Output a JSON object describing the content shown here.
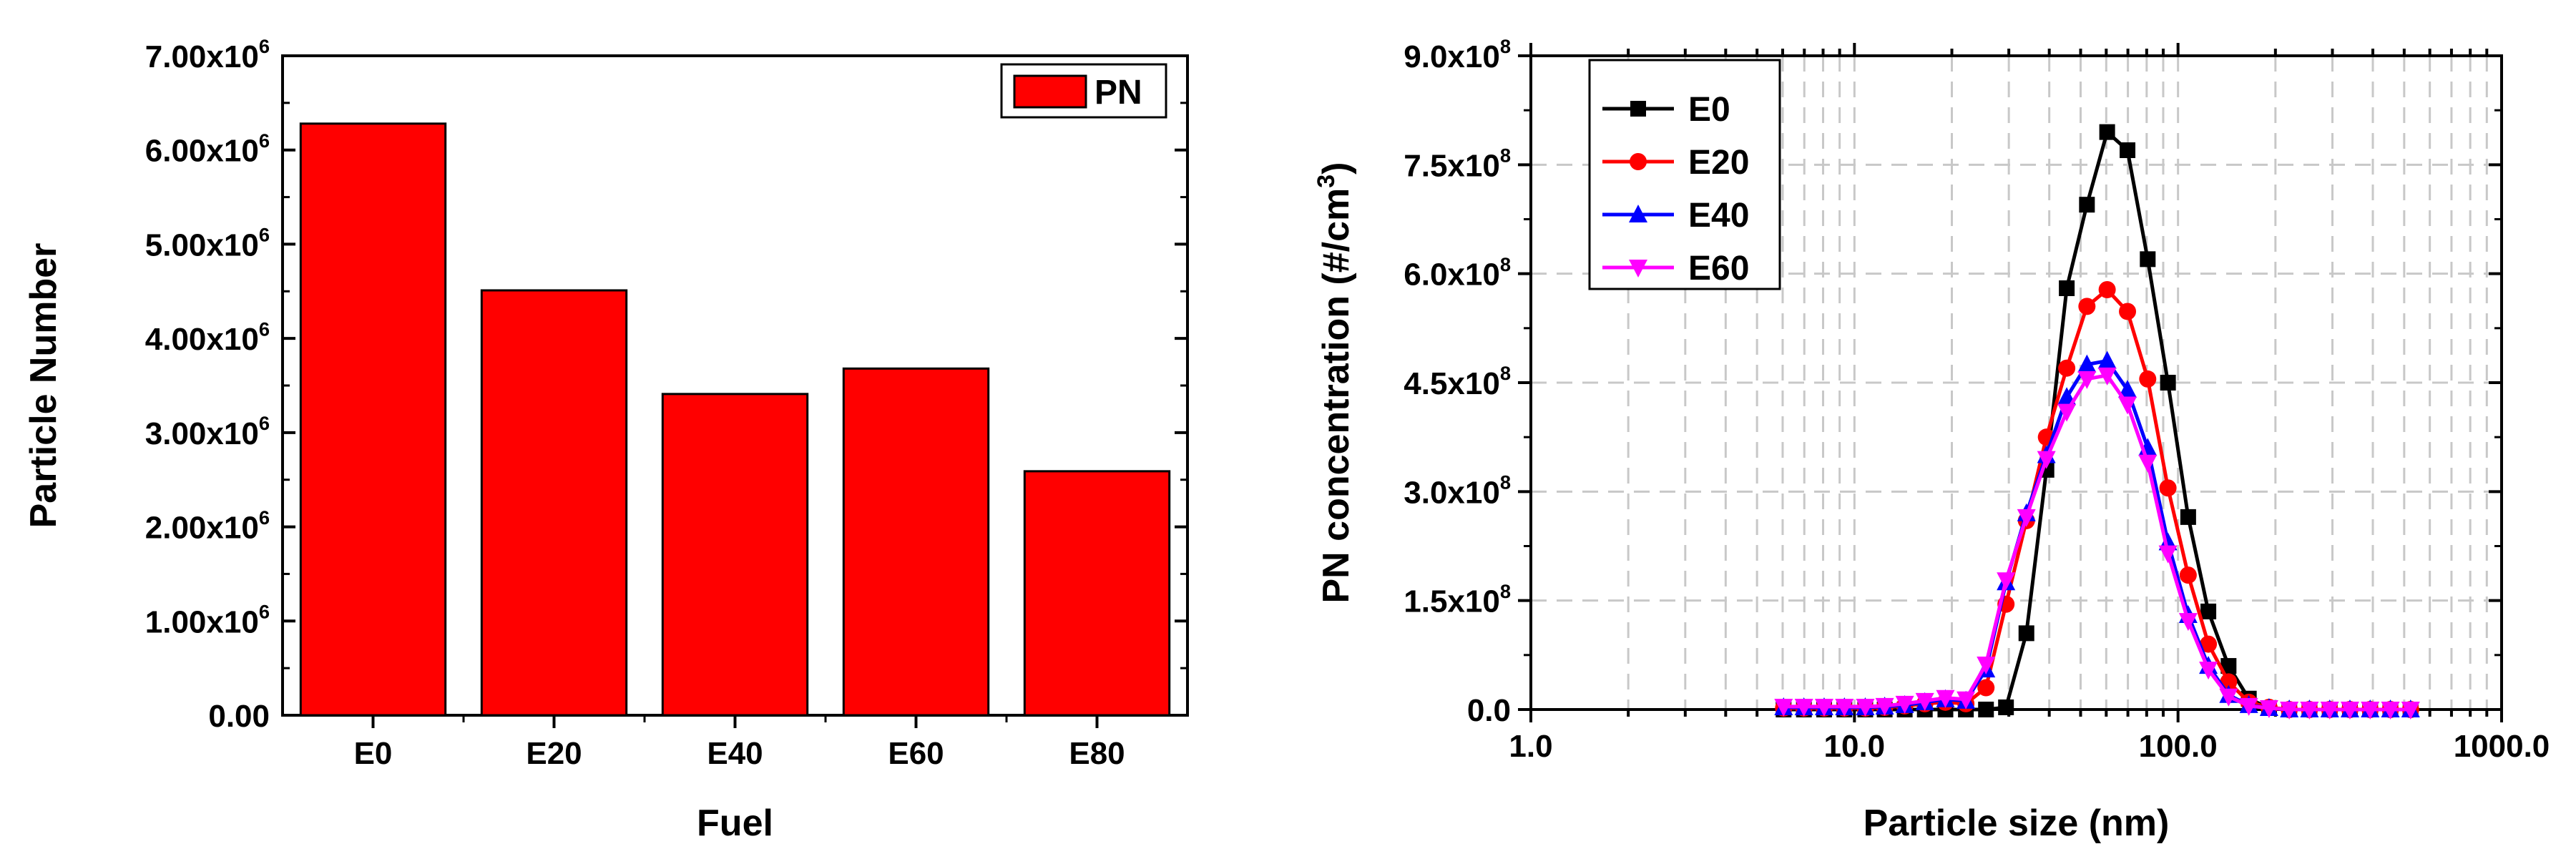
{
  "chart_data": [
    {
      "type": "bar",
      "xlabel": "Fuel",
      "ylabel": "Particle Number",
      "categories": [
        "E0",
        "E20",
        "E40",
        "E60",
        "E80"
      ],
      "series": [
        {
          "name": "PN",
          "values": [
            6280000,
            4510000,
            3410000,
            3680000,
            2590000
          ],
          "color": "#ff0000"
        }
      ],
      "ylim": [
        0,
        7000000
      ],
      "yticks": [
        0,
        1000000,
        2000000,
        3000000,
        4000000,
        5000000,
        6000000,
        7000000
      ],
      "ytick_labels": [
        {
          "m": "0.00",
          "e": ""
        },
        {
          "m": "1.00x10",
          "e": "6"
        },
        {
          "m": "2.00x10",
          "e": "6"
        },
        {
          "m": "3.00x10",
          "e": "6"
        },
        {
          "m": "4.00x10",
          "e": "6"
        },
        {
          "m": "5.00x10",
          "e": "6"
        },
        {
          "m": "6.00x10",
          "e": "6"
        },
        {
          "m": "7.00x10",
          "e": "6"
        }
      ],
      "legend_position": "top-right",
      "grid": false
    },
    {
      "type": "line",
      "xlabel": "Particle size (nm)",
      "ylabel_parts": {
        "main": "PN concentration (#/cm",
        "sup": "3",
        "tail": ")"
      },
      "xscale": "log",
      "xlim": [
        1.0,
        1000.0
      ],
      "xticks": [
        1.0,
        10.0,
        100.0,
        1000.0
      ],
      "xtick_labels": [
        "1.0",
        "10.0",
        "100.0",
        "1000.0"
      ],
      "ylim": [
        0,
        900000000
      ],
      "yticks": [
        0,
        150000000,
        300000000,
        450000000,
        600000000,
        750000000,
        900000000
      ],
      "ytick_labels": [
        {
          "m": "0.0",
          "e": ""
        },
        {
          "m": "1.5x10",
          "e": "8"
        },
        {
          "m": "3.0x10",
          "e": "8"
        },
        {
          "m": "4.5x10",
          "e": "8"
        },
        {
          "m": "6.0x10",
          "e": "8"
        },
        {
          "m": "7.5x10",
          "e": "8"
        },
        {
          "m": "9.0x10",
          "e": "8"
        }
      ],
      "grid": true,
      "legend_position": "top-left",
      "x": [
        6.04,
        6.98,
        8.06,
        9.31,
        10.8,
        12.4,
        14.3,
        16.5,
        19.1,
        22.1,
        25.5,
        29.4,
        34.0,
        39.2,
        45.3,
        52.3,
        60.4,
        69.8,
        80.6,
        93.1,
        107.5,
        124.1,
        143.3,
        165.5,
        191.1,
        220.7,
        254.8,
        294.3,
        339.8,
        392.4,
        453.2,
        523.3
      ],
      "series": [
        {
          "name": "E0",
          "color": "#000000",
          "marker": "square",
          "values": [
            0,
            0,
            0,
            0,
            0,
            0,
            0,
            0,
            0,
            0,
            0,
            3000000,
            105000000,
            330000000,
            580000000,
            695000000,
            795000000,
            770000000,
            620000000,
            450000000,
            265000000,
            135000000,
            60000000,
            15000000,
            2000000,
            0,
            0,
            0,
            0,
            0,
            0,
            0
          ]
        },
        {
          "name": "E20",
          "color": "#ff0000",
          "marker": "circle",
          "values": [
            2000000,
            2000000,
            2000000,
            2000000,
            2000000,
            3000000,
            5000000,
            8000000,
            10000000,
            8000000,
            30000000,
            145000000,
            260000000,
            375000000,
            470000000,
            555000000,
            578000000,
            548000000,
            455000000,
            305000000,
            185000000,
            90000000,
            38000000,
            10000000,
            3000000,
            0,
            0,
            0,
            0,
            0,
            0,
            0
          ]
        },
        {
          "name": "E40",
          "color": "#0000ff",
          "marker": "triangle-up",
          "values": [
            3000000,
            3000000,
            3000000,
            3000000,
            3000000,
            4000000,
            6000000,
            10000000,
            14000000,
            12000000,
            55000000,
            175000000,
            270000000,
            350000000,
            430000000,
            475000000,
            480000000,
            440000000,
            360000000,
            230000000,
            130000000,
            60000000,
            20000000,
            6000000,
            2000000,
            0,
            0,
            0,
            0,
            0,
            0,
            0
          ]
        },
        {
          "name": "E60",
          "color": "#ff00ff",
          "marker": "triangle-down",
          "values": [
            4000000,
            4000000,
            4000000,
            4000000,
            4000000,
            5000000,
            8000000,
            12000000,
            16000000,
            14000000,
            62000000,
            178000000,
            265000000,
            345000000,
            410000000,
            455000000,
            460000000,
            420000000,
            340000000,
            215000000,
            122000000,
            55000000,
            18000000,
            5000000,
            2000000,
            0,
            0,
            0,
            0,
            0,
            0,
            0
          ]
        }
      ]
    }
  ]
}
